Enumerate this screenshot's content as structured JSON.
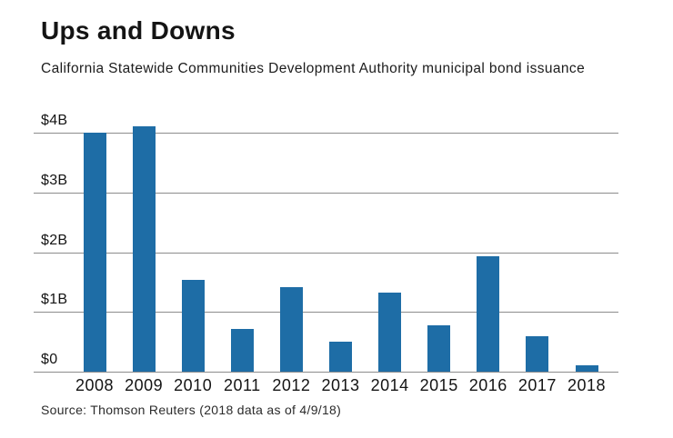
{
  "header": {
    "title": "Ups and Downs",
    "subtitle": "California Statewide Communities Development Authority municipal bond issuance"
  },
  "footer": {
    "source": "Source: Thomson Reuters (2018 data as of 4/9/18)"
  },
  "colors": {
    "bar": "#1e6da6",
    "gridline": "#8c8c8c",
    "text": "#141414",
    "source_text": "#2b2b2b"
  },
  "chart_data": {
    "type": "bar",
    "title": "Ups and Downs",
    "subtitle": "California Statewide Communities Development Authority municipal bond issuance",
    "categories": [
      "2008",
      "2009",
      "2010",
      "2011",
      "2012",
      "2013",
      "2014",
      "2015",
      "2016",
      "2017",
      "2018"
    ],
    "values": [
      4.0,
      4.1,
      1.53,
      0.72,
      1.42,
      0.5,
      1.32,
      0.77,
      1.93,
      0.6,
      0.11
    ],
    "unit": "billions of US dollars",
    "xlabel": "",
    "ylabel": "",
    "ylim": [
      0,
      4.3
    ],
    "y_ticks": [
      {
        "value": 0,
        "label": "$0"
      },
      {
        "value": 1,
        "label": "$1B"
      },
      {
        "value": 2,
        "label": "$2B"
      },
      {
        "value": 3,
        "label": "$3B"
      },
      {
        "value": 4,
        "label": "$4B"
      }
    ],
    "grid": "horizontal",
    "legend": "none",
    "source": "Source: Thomson Reuters (2018 data as of 4/9/18)"
  }
}
